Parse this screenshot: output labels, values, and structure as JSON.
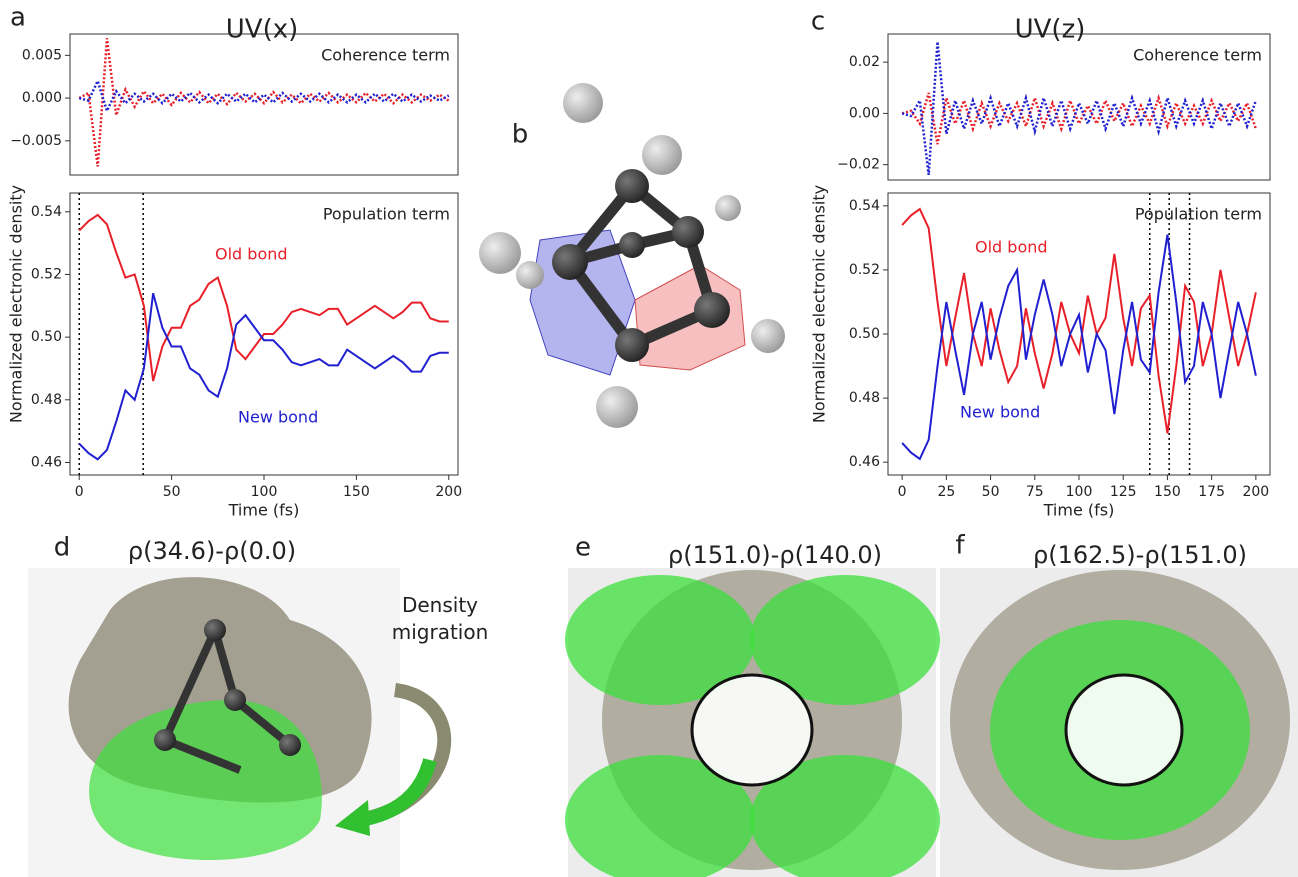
{
  "chart_data": [
    {
      "type": "line",
      "panel_label": "a",
      "title": "UV(x)",
      "annotation": "Coherence term",
      "line_style": "dotted",
      "xlim": [
        -5,
        205
      ],
      "ylim": [
        -0.009,
        0.0075
      ],
      "yticks": [
        {
          "value": -0.005,
          "label": "−0.005"
        },
        {
          "value": 0,
          "label": "0.000"
        },
        0.005
      ],
      "x": [
        0,
        5,
        10,
        15,
        20,
        25,
        30,
        35,
        40,
        45,
        50,
        55,
        60,
        65,
        70,
        75,
        80,
        85,
        90,
        95,
        100,
        105,
        110,
        115,
        120,
        125,
        130,
        135,
        140,
        145,
        150,
        155,
        160,
        165,
        170,
        175,
        180,
        185,
        190,
        195,
        200
      ],
      "series": [
        {
          "color": "#e8202a",
          "values": [
            0,
            0.0006,
            -0.008,
            0.007,
            -0.002,
            0.001,
            -0.001,
            0.0008,
            -0.0006,
            0.0005,
            -0.0008,
            0.0006,
            -0.0005,
            0.0007,
            -0.0006,
            0.0005,
            -0.0007,
            0.0006,
            -0.0004,
            0.0005,
            -0.0006,
            0.0007,
            -0.0005,
            0.0004,
            -0.0006,
            0.0005,
            -0.0004,
            0.0006,
            -0.0005,
            0.0004,
            -0.0005,
            0.0006,
            -0.0004,
            0.0005,
            -0.0006,
            0.0004,
            -0.0005,
            0.0004,
            -0.0003,
            0.0004,
            -0.0003
          ]
        },
        {
          "color": "#2020d0",
          "values": [
            0,
            -0.0003,
            0.002,
            -0.0015,
            0.0008,
            -0.0006,
            0.0005,
            -0.0004,
            0.0005,
            -0.0006,
            0.0005,
            -0.0004,
            0.0006,
            -0.0005,
            0.0004,
            -0.0006,
            0.0005,
            -0.0004,
            0.0005,
            -0.0005,
            0.0004,
            -0.0005,
            0.0006,
            -0.0004,
            0.0005,
            -0.0004,
            0.0005,
            -0.0005,
            0.0004,
            -0.0005,
            0.0004,
            -0.0005,
            0.0005,
            -0.0004,
            0.0005,
            -0.0004,
            0.0004,
            -0.0004,
            0.0003,
            -0.0003,
            0.0003
          ]
        }
      ]
    },
    {
      "type": "line",
      "annotation": "Population term",
      "xlabel": "Time (fs)",
      "ylabel": "Normalized electronic density",
      "line_style": "solid",
      "xlim": [
        -5,
        205
      ],
      "xticks": [
        0,
        50,
        100,
        150,
        200
      ],
      "ylim": [
        0.456,
        0.546
      ],
      "yticks": [
        0.46,
        0.48,
        {
          "value": 0.5,
          "label": "0.50"
        },
        0.52,
        0.54
      ],
      "vlines": [
        0,
        34.6
      ],
      "x": [
        0,
        5,
        10,
        15,
        20,
        25,
        30,
        35,
        40,
        45,
        50,
        55,
        60,
        65,
        70,
        75,
        80,
        85,
        90,
        95,
        100,
        105,
        110,
        115,
        120,
        125,
        130,
        135,
        140,
        145,
        150,
        155,
        160,
        165,
        170,
        175,
        180,
        185,
        190,
        195,
        200
      ],
      "series": [
        {
          "name": "Old bond",
          "color": "#e8202a",
          "values": [
            0.534,
            0.537,
            0.539,
            0.536,
            0.527,
            0.519,
            0.52,
            0.51,
            0.486,
            0.497,
            0.503,
            0.503,
            0.51,
            0.512,
            0.517,
            0.519,
            0.51,
            0.496,
            0.493,
            0.497,
            0.501,
            0.501,
            0.504,
            0.508,
            0.509,
            0.508,
            0.507,
            0.509,
            0.509,
            0.504,
            0.506,
            0.508,
            0.51,
            0.508,
            0.506,
            0.508,
            0.511,
            0.511,
            0.506,
            0.505,
            0.505
          ]
        },
        {
          "name": "New bond",
          "color": "#2020d0",
          "values": [
            0.466,
            0.463,
            0.461,
            0.464,
            0.473,
            0.483,
            0.48,
            0.49,
            0.514,
            0.503,
            0.497,
            0.497,
            0.49,
            0.488,
            0.483,
            0.481,
            0.49,
            0.504,
            0.507,
            0.503,
            0.499,
            0.499,
            0.496,
            0.492,
            0.491,
            0.492,
            0.493,
            0.491,
            0.491,
            0.496,
            0.494,
            0.492,
            0.49,
            0.492,
            0.494,
            0.492,
            0.489,
            0.489,
            0.494,
            0.495,
            0.495
          ]
        }
      ]
    },
    {
      "type": "line",
      "panel_label": "c",
      "title": "UV(z)",
      "annotation": "Coherence term",
      "line_style": "dotted",
      "xlim": [
        -8,
        208
      ],
      "ylim": [
        -0.026,
        0.031
      ],
      "yticks": [
        {
          "value": -0.02,
          "label": "−0.02"
        },
        {
          "value": 0,
          "label": "0.00"
        },
        0.02
      ],
      "x": [
        0,
        5,
        10,
        15,
        20,
        25,
        30,
        35,
        40,
        45,
        50,
        55,
        60,
        65,
        70,
        75,
        80,
        85,
        90,
        95,
        100,
        105,
        110,
        115,
        120,
        125,
        130,
        135,
        140,
        145,
        150,
        155,
        160,
        165,
        170,
        175,
        180,
        185,
        190,
        195,
        200
      ],
      "series": [
        {
          "color": "#e8202a",
          "values": [
            0,
            0.001,
            -0.004,
            0.008,
            -0.012,
            0.006,
            -0.004,
            0.005,
            -0.006,
            0.004,
            -0.005,
            0.004,
            -0.003,
            0.004,
            -0.005,
            0.006,
            -0.005,
            0.004,
            -0.006,
            0.005,
            -0.004,
            0.003,
            -0.004,
            0.005,
            -0.003,
            0.004,
            -0.005,
            0.003,
            -0.004,
            0.006,
            -0.005,
            0.004,
            -0.004,
            0.003,
            -0.004,
            0.005,
            -0.003,
            0.004,
            -0.003,
            0.004,
            -0.006
          ]
        },
        {
          "color": "#2020d0",
          "values": [
            0,
            -0.001,
            0.005,
            -0.024,
            0.028,
            -0.008,
            0.005,
            -0.006,
            0.005,
            -0.004,
            0.006,
            -0.005,
            0.004,
            -0.005,
            0.006,
            -0.007,
            0.006,
            -0.005,
            0.005,
            -0.006,
            0.004,
            -0.004,
            0.005,
            -0.006,
            0.004,
            -0.005,
            0.006,
            -0.004,
            0.005,
            -0.007,
            0.006,
            -0.005,
            0.005,
            -0.004,
            0.005,
            -0.006,
            0.004,
            -0.005,
            0.004,
            -0.005,
            0.005
          ]
        }
      ]
    },
    {
      "type": "line",
      "annotation": "Population term",
      "xlabel": "Time (fs)",
      "ylabel": "Normalized electronic density",
      "line_style": "solid",
      "xlim": [
        -8,
        208
      ],
      "xticks": [
        0,
        25,
        50,
        75,
        100,
        125,
        150,
        175,
        200
      ],
      "ylim": [
        0.456,
        0.544
      ],
      "yticks": [
        0.46,
        0.48,
        {
          "value": 0.5,
          "label": "0.50"
        },
        0.52,
        0.54
      ],
      "vlines": [
        140,
        151,
        162.5
      ],
      "x": [
        0,
        5,
        10,
        15,
        20,
        25,
        30,
        35,
        40,
        45,
        50,
        55,
        60,
        65,
        70,
        75,
        80,
        85,
        90,
        95,
        100,
        105,
        110,
        115,
        120,
        125,
        130,
        135,
        140,
        145,
        150,
        155,
        160,
        165,
        170,
        175,
        180,
        185,
        190,
        195,
        200
      ],
      "series": [
        {
          "name": "Old bond",
          "color": "#e8202a",
          "values": [
            0.534,
            0.537,
            0.539,
            0.533,
            0.51,
            0.49,
            0.505,
            0.519,
            0.5,
            0.49,
            0.508,
            0.495,
            0.485,
            0.49,
            0.508,
            0.494,
            0.483,
            0.494,
            0.51,
            0.5,
            0.494,
            0.512,
            0.5,
            0.505,
            0.525,
            0.505,
            0.49,
            0.508,
            0.512,
            0.487,
            0.469,
            0.49,
            0.515,
            0.51,
            0.49,
            0.5,
            0.52,
            0.505,
            0.49,
            0.5,
            0.513
          ]
        },
        {
          "name": "New bond",
          "color": "#2020d0",
          "values": [
            0.466,
            0.463,
            0.461,
            0.467,
            0.49,
            0.51,
            0.495,
            0.481,
            0.5,
            0.51,
            0.492,
            0.505,
            0.515,
            0.52,
            0.492,
            0.506,
            0.517,
            0.506,
            0.49,
            0.5,
            0.506,
            0.488,
            0.5,
            0.495,
            0.475,
            0.495,
            0.51,
            0.492,
            0.488,
            0.513,
            0.531,
            0.51,
            0.485,
            0.49,
            0.51,
            0.5,
            0.48,
            0.495,
            0.51,
            0.5,
            0.487
          ]
        }
      ]
    }
  ],
  "figure": {
    "molecule": {
      "label": "b"
    },
    "images": [
      {
        "label": "d",
        "title": "ρ(34.6)-ρ(0.0)",
        "annotation": "Density migration"
      },
      {
        "label": "e",
        "title": "ρ(151.0)-ρ(140.0)"
      },
      {
        "label": "f",
        "title": "ρ(162.5)-ρ(151.0)"
      }
    ]
  }
}
